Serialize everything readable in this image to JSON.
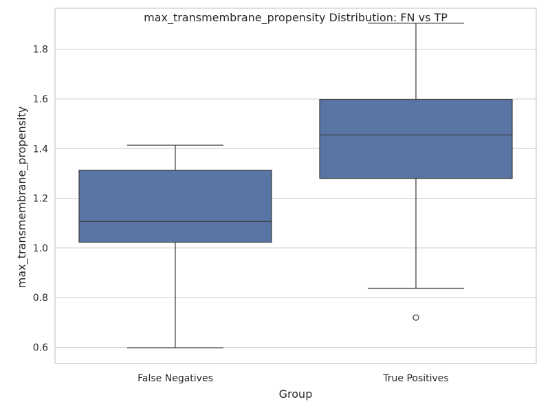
{
  "chart_data": {
    "type": "box",
    "title": "max_transmembrane_propensity Distribution: FN vs TP",
    "xlabel": "Group",
    "ylabel": "max_transmembrane_propensity",
    "categories": [
      "False Negatives",
      "True Positives"
    ],
    "ylim": [
      0.535,
      1.965
    ],
    "yticks": [
      0.6,
      0.8,
      1.0,
      1.2,
      1.4,
      1.6,
      1.8
    ],
    "ytick_labels": [
      "0.6",
      "0.8",
      "1.0",
      "1.2",
      "1.4",
      "1.6",
      "1.8"
    ],
    "grid": true,
    "boxes": [
      {
        "category": "False Negatives",
        "whisker_low": 0.598,
        "q1": 1.023,
        "median": 1.107,
        "q3": 1.313,
        "whisker_high": 1.414,
        "outliers": []
      },
      {
        "category": "True Positives",
        "whisker_low": 0.838,
        "q1": 1.28,
        "median": 1.455,
        "q3": 1.598,
        "whisker_high": 1.905,
        "outliers": [
          0.72
        ]
      }
    ],
    "colors": {
      "box_fill": "#5875a4",
      "line": "#3f3f3f",
      "grid": "#cccccc",
      "spine": "#cccccc",
      "background": "#ffffff"
    }
  }
}
